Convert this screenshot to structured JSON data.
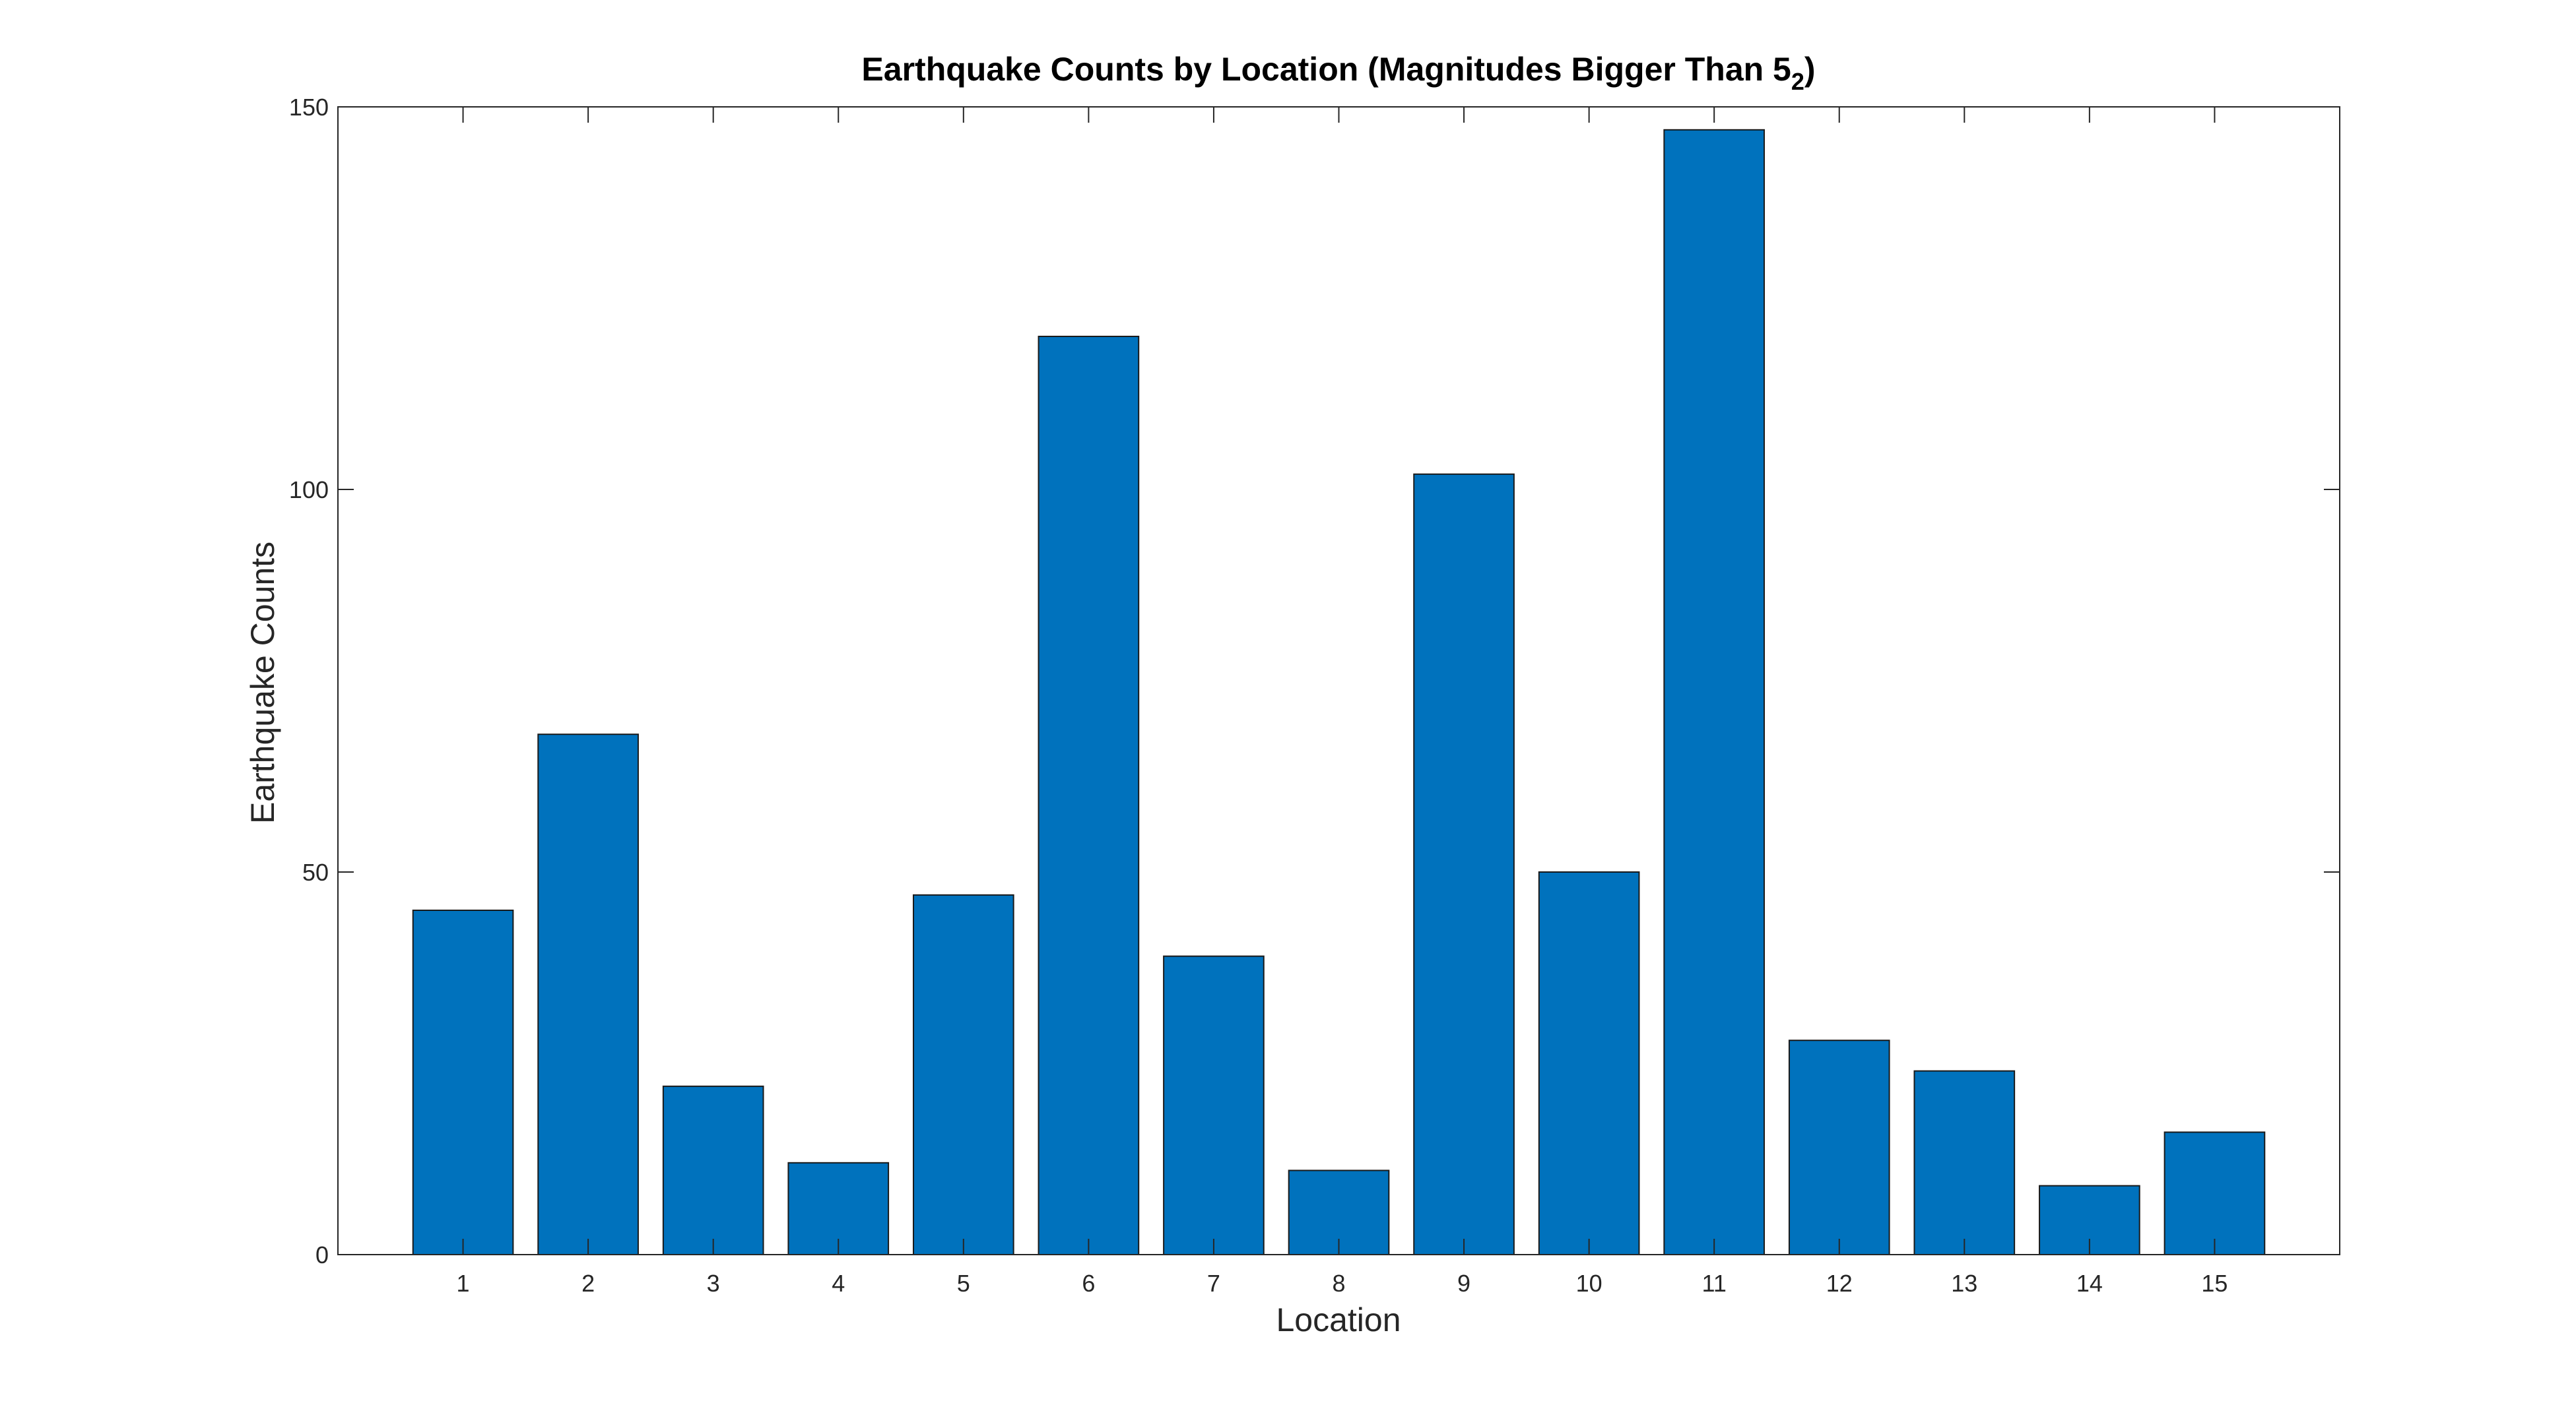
{
  "chart_data": {
    "type": "bar",
    "title": {
      "main": "Earthquake Counts by Location (Magnitudes Bigger Than 5",
      "subscript": "2",
      "close": ")"
    },
    "xlabel": "Location",
    "ylabel": "Earthquake Counts",
    "categories": [
      "1",
      "2",
      "3",
      "4",
      "5",
      "6",
      "7",
      "8",
      "9",
      "10",
      "11",
      "12",
      "13",
      "14",
      "15"
    ],
    "values": [
      45,
      68,
      22,
      12,
      47,
      120,
      39,
      11,
      102,
      50,
      147,
      28,
      24,
      9,
      16
    ],
    "ylim": [
      0,
      150
    ],
    "yticks": [
      0,
      50,
      100,
      150
    ],
    "xlim": [
      0,
      16
    ],
    "grid": false,
    "legend": "none",
    "colors": {
      "bar_fill": "#0072BD",
      "bar_edge": "#1a1a1a",
      "axis": "#262626",
      "background": "#ffffff"
    }
  }
}
